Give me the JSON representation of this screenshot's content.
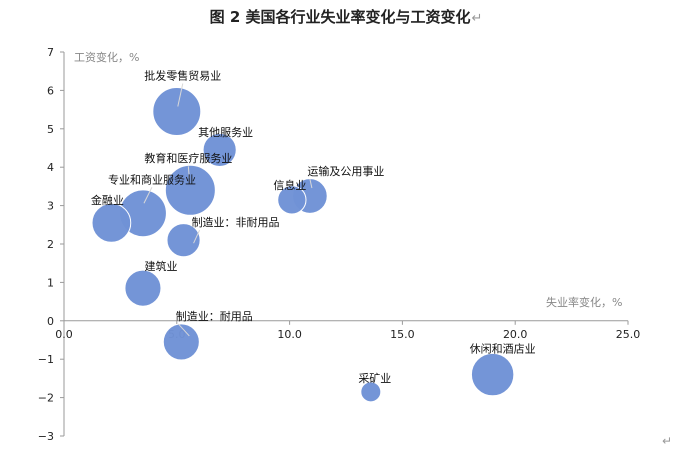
{
  "document": {
    "title": "图 2 美国各行业失业率变化与工资变化",
    "return_mark": "↵",
    "corner_mark": "↵"
  },
  "chart_data": {
    "type": "scatter",
    "subtype": "bubble",
    "title": "图 2 美国各行业失业率变化与工资变化",
    "xlabel": "失业率变化，%",
    "ylabel": "工资变化，%",
    "xlim": [
      0,
      25
    ],
    "ylim": [
      -3,
      7
    ],
    "x_ticks": [
      0,
      5,
      10,
      15,
      20,
      25
    ],
    "x_tick_labels": [
      "0.0",
      "5.0",
      "10.0",
      "15.0",
      "20.0",
      "25.0"
    ],
    "y_ticks": [
      -3,
      -2,
      -1,
      0,
      1,
      2,
      3,
      4,
      5,
      6,
      7
    ],
    "y_tick_labels": [
      "−3",
      "−2",
      "−1",
      "0",
      "1",
      "2",
      "3",
      "4",
      "5",
      "6",
      "7"
    ],
    "grid": false,
    "bubble_color": "#6f92d6",
    "bubble_edge_color": "#ffffff",
    "points": [
      {
        "label": "批发零售贸易业",
        "x": 5.0,
        "y": 5.45,
        "size": 23
      },
      {
        "label": "其他服务业",
        "x": 6.9,
        "y": 4.45,
        "size": 11
      },
      {
        "label": "教育和医疗服务业",
        "x": 5.6,
        "y": 3.4,
        "size": 25
      },
      {
        "label": "专业和商业服务业",
        "x": 3.5,
        "y": 2.8,
        "size": 22
      },
      {
        "label": "金融业",
        "x": 2.1,
        "y": 2.55,
        "size": 15
      },
      {
        "label": "制造业：非耐用品",
        "x": 5.3,
        "y": 2.1,
        "size": 11
      },
      {
        "label": "信息业",
        "x": 10.1,
        "y": 3.15,
        "size": 8
      },
      {
        "label": "运输及公用事业",
        "x": 10.9,
        "y": 3.25,
        "size": 12
      },
      {
        "label": "建筑业",
        "x": 3.5,
        "y": 0.85,
        "size": 13
      },
      {
        "label": "制造业：耐用品",
        "x": 5.2,
        "y": -0.55,
        "size": 13
      },
      {
        "label": "采矿业",
        "x": 13.6,
        "y": -1.85,
        "size": 4
      },
      {
        "label": "休闲和酒店业",
        "x": 19.0,
        "y": -1.4,
        "size": 18
      }
    ]
  }
}
